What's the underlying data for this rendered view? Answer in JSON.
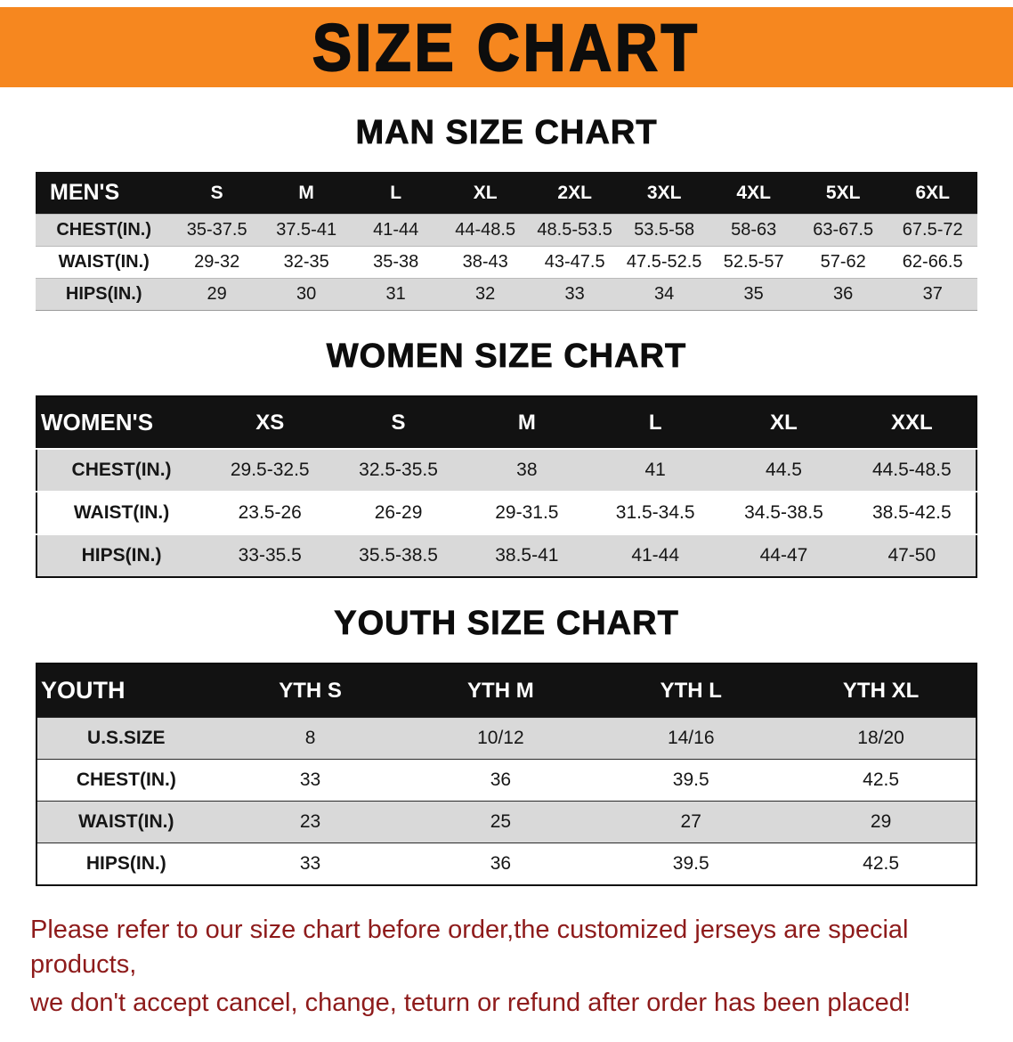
{
  "banner": {
    "title": "SIZE CHART",
    "bg_color": "#F6871F"
  },
  "sections": [
    {
      "title": "MAN SIZE CHART",
      "header": [
        "MEN'S",
        "S",
        "M",
        "L",
        "XL",
        "2XL",
        "3XL",
        "4XL",
        "5XL",
        "6XL"
      ],
      "rows": [
        [
          "CHEST(IN.)",
          "35-37.5",
          "37.5-41",
          "41-44",
          "44-48.5",
          "48.5-53.5",
          "53.5-58",
          "58-63",
          "63-67.5",
          "67.5-72"
        ],
        [
          "WAIST(IN.)",
          "29-32",
          "32-35",
          "35-38",
          "38-43",
          "43-47.5",
          "47.5-52.5",
          "52.5-57",
          "57-62",
          "62-66.5"
        ],
        [
          "HIPS(IN.)",
          "29",
          "30",
          "31",
          "32",
          "33",
          "34",
          "35",
          "36",
          "37"
        ]
      ]
    },
    {
      "title": "WOMEN SIZE CHART",
      "header": [
        "WOMEN'S",
        "XS",
        "S",
        "M",
        "L",
        "XL",
        "XXL"
      ],
      "rows": [
        [
          "CHEST(IN.)",
          "29.5-32.5",
          "32.5-35.5",
          "38",
          "41",
          "44.5",
          "44.5-48.5"
        ],
        [
          "WAIST(IN.)",
          "23.5-26",
          "26-29",
          "29-31.5",
          "31.5-34.5",
          "34.5-38.5",
          "38.5-42.5"
        ],
        [
          "HIPS(IN.)",
          "33-35.5",
          "35.5-38.5",
          "38.5-41",
          "41-44",
          "44-47",
          "47-50"
        ]
      ]
    },
    {
      "title": "YOUTH SIZE CHART",
      "header": [
        "YOUTH",
        "YTH S",
        "YTH M",
        "YTH L",
        "YTH XL"
      ],
      "rows": [
        [
          "U.S.SIZE",
          "8",
          "10/12",
          "14/16",
          "18/20"
        ],
        [
          "CHEST(IN.)",
          "33",
          "36",
          "39.5",
          "42.5"
        ],
        [
          "WAIST(IN.)",
          "23",
          "25",
          "27",
          "29"
        ],
        [
          "HIPS(IN.)",
          "33",
          "36",
          "39.5",
          "42.5"
        ]
      ]
    }
  ],
  "footer": {
    "line1": "Please refer to our size chart before order,the customized jerseys are special products,",
    "line2": "we don't accept cancel, change, teturn or refund after order has been placed!",
    "color": "#8e1b1b"
  }
}
